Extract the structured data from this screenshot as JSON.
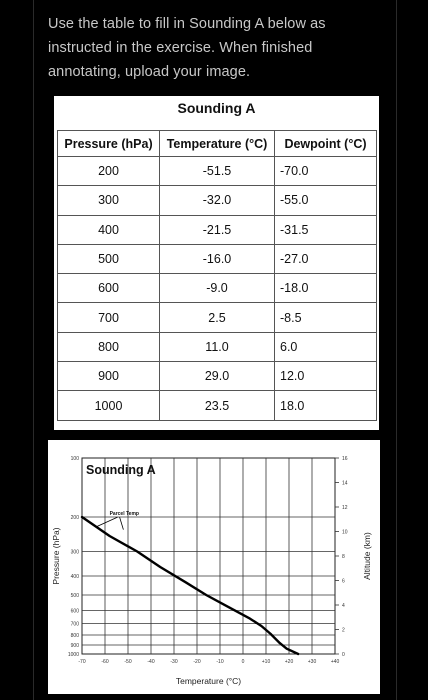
{
  "instructions": "Use the table to fill in Sounding A below as instructed in the exercise. When finished annotating, upload your image.",
  "table": {
    "title": "Sounding A",
    "headers": [
      "Pressure (hPa)",
      "Temperature (°C)",
      "Dewpoint (°C)"
    ],
    "rows": [
      [
        "200",
        "-51.5",
        "-70.0"
      ],
      [
        "300",
        "-32.0",
        "-55.0"
      ],
      [
        "400",
        "-21.5",
        "-31.5"
      ],
      [
        "500",
        "-16.0",
        "-27.0"
      ],
      [
        "600",
        "-9.0",
        "-18.0"
      ],
      [
        "700",
        "2.5",
        "-8.5"
      ],
      [
        "800",
        "11.0",
        "6.0"
      ],
      [
        "900",
        "29.0",
        "12.0"
      ],
      [
        "1000",
        "23.5",
        "18.0"
      ]
    ]
  },
  "chart_data": {
    "type": "line",
    "title": "Sounding A",
    "xlabel": "Temperature (°C)",
    "ylabel": "Pressure (hPa)",
    "y2label": "Altitude (km)",
    "annotation": "Parcel Temp",
    "xlim": [
      -70,
      40
    ],
    "ylim": [
      100,
      1000
    ],
    "x_ticks": [
      "-70",
      "-60",
      "-50",
      "-40",
      "-30",
      "-20",
      "-10",
      "0",
      "+10",
      "+20",
      "+30",
      "+40"
    ],
    "x_tick_values": [
      -70,
      -60,
      -50,
      -40,
      -30,
      -20,
      -10,
      0,
      10,
      20,
      30,
      40
    ],
    "y_ticks": [
      "100",
      "200",
      "300",
      "400",
      "500",
      "600",
      "700",
      "800",
      "900",
      "1000"
    ],
    "y_tick_values": [
      100,
      200,
      300,
      400,
      500,
      600,
      700,
      800,
      900,
      1000
    ],
    "y2_ticks": [
      "16",
      "14",
      "12",
      "10",
      "8",
      "6",
      "4",
      "2",
      "0"
    ],
    "y2_tick_values": [
      16,
      14,
      12,
      10,
      8,
      6,
      4,
      2,
      0
    ],
    "grid": true,
    "series": [
      {
        "name": "Parcel Temp",
        "points": [
          {
            "x": -70,
            "y": 200
          },
          {
            "x": -58,
            "y": 250
          },
          {
            "x": -46,
            "y": 300
          },
          {
            "x": -36,
            "y": 360
          },
          {
            "x": -25,
            "y": 430
          },
          {
            "x": -16,
            "y": 500
          },
          {
            "x": -7,
            "y": 570
          },
          {
            "x": 3,
            "y": 660
          },
          {
            "x": 8,
            "y": 720
          },
          {
            "x": 12,
            "y": 790
          },
          {
            "x": 16,
            "y": 880
          },
          {
            "x": 19,
            "y": 940
          },
          {
            "x": 24,
            "y": 1000
          }
        ]
      }
    ]
  }
}
